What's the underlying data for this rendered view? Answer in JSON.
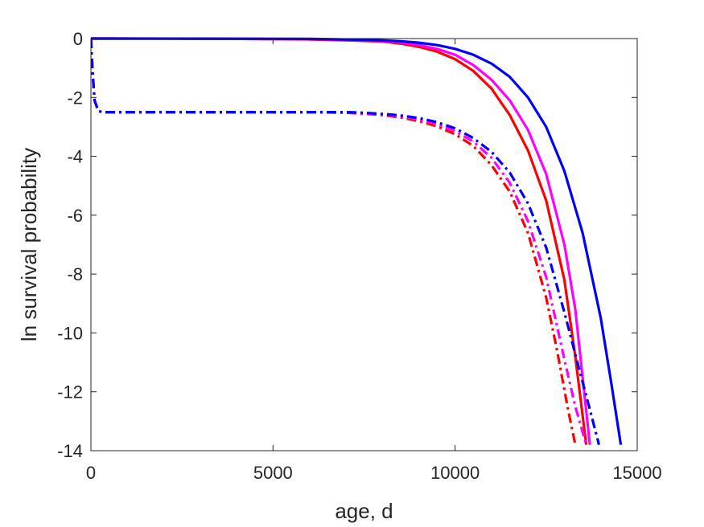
{
  "chart_data": {
    "type": "line",
    "title": "",
    "xlabel": "age, d",
    "ylabel": "ln survival probability",
    "xlim": [
      0,
      15000
    ],
    "ylim": [
      -14,
      0
    ],
    "xticks": [
      0,
      5000,
      10000,
      15000
    ],
    "xtick_labels": [
      "0",
      "5000",
      "10000",
      "15000"
    ],
    "yticks": [
      0,
      -2,
      -4,
      -6,
      -8,
      -10,
      -12,
      -14
    ],
    "ytick_labels": [
      "0",
      "-2",
      "-4",
      "-6",
      "-8",
      "-10",
      "-12",
      "-14"
    ],
    "grid": false,
    "legend": "none",
    "series": [
      {
        "color": "#ff0000",
        "style": "solid",
        "x": [
          0,
          2000,
          4000,
          6000,
          7000,
          8000,
          8500,
          9000,
          9500,
          10000,
          10500,
          11000,
          11500,
          12000,
          12500,
          13000,
          13300,
          13600
        ],
        "y": [
          0,
          -0.002,
          -0.01,
          -0.03,
          -0.06,
          -0.1,
          -0.17,
          -0.28,
          -0.44,
          -0.7,
          -1.1,
          -1.7,
          -2.6,
          -3.8,
          -5.5,
          -8.2,
          -10.8,
          -13.8
        ]
      },
      {
        "color": "#ff00ff",
        "style": "solid",
        "x": [
          0,
          2000,
          4000,
          6000,
          7000,
          8000,
          8500,
          9000,
          9500,
          10000,
          10500,
          11000,
          11500,
          12000,
          12500,
          13000,
          13300,
          13700
        ],
        "y": [
          0,
          -0.002,
          -0.01,
          -0.02,
          -0.05,
          -0.08,
          -0.13,
          -0.22,
          -0.35,
          -0.55,
          -0.9,
          -1.4,
          -2.1,
          -3.1,
          -4.6,
          -7.0,
          -9.2,
          -13.8
        ]
      },
      {
        "color": "#0000ff",
        "style": "solid",
        "x": [
          0,
          2000,
          4000,
          6000,
          7000,
          8000,
          8500,
          9000,
          9500,
          10000,
          10500,
          11000,
          11500,
          12000,
          12500,
          13000,
          13500,
          14000,
          14300,
          14550
        ],
        "y": [
          0,
          -0.001,
          -0.005,
          -0.01,
          -0.03,
          -0.06,
          -0.09,
          -0.14,
          -0.22,
          -0.35,
          -0.55,
          -0.85,
          -1.3,
          -2.0,
          -3.0,
          -4.5,
          -6.6,
          -9.5,
          -11.8,
          -13.8
        ]
      },
      {
        "color": "#ff0000",
        "style": "dashdot",
        "x": [
          0,
          50,
          100,
          200,
          300,
          1000,
          3000,
          5000,
          6000,
          7000,
          7500,
          8000,
          8500,
          9000,
          9500,
          10000,
          10500,
          11000,
          11500,
          12000,
          12500,
          12800,
          13100,
          13300
        ],
        "y": [
          0,
          -1.2,
          -2.1,
          -2.45,
          -2.5,
          -2.5,
          -2.5,
          -2.5,
          -2.5,
          -2.52,
          -2.55,
          -2.6,
          -2.68,
          -2.8,
          -2.98,
          -3.25,
          -3.65,
          -4.3,
          -5.2,
          -6.6,
          -8.8,
          -10.6,
          -12.6,
          -13.8
        ]
      },
      {
        "color": "#ff00ff",
        "style": "dashdot",
        "x": [
          0,
          50,
          100,
          200,
          300,
          1000,
          3000,
          5000,
          6000,
          7000,
          7500,
          8000,
          8500,
          9000,
          9500,
          10000,
          10500,
          11000,
          11500,
          12000,
          12500,
          13000,
          13300,
          13600
        ],
        "y": [
          0,
          -1.2,
          -2.1,
          -2.45,
          -2.5,
          -2.5,
          -2.5,
          -2.5,
          -2.5,
          -2.51,
          -2.54,
          -2.58,
          -2.64,
          -2.74,
          -2.9,
          -3.15,
          -3.5,
          -4.05,
          -4.9,
          -6.2,
          -8.1,
          -10.9,
          -12.5,
          -13.8
        ]
      },
      {
        "color": "#0000ff",
        "style": "dashdot",
        "x": [
          0,
          50,
          100,
          200,
          300,
          1000,
          3000,
          5000,
          6000,
          7000,
          7500,
          8000,
          8500,
          9000,
          9500,
          10000,
          10500,
          11000,
          11500,
          12000,
          12500,
          13000,
          13400,
          13700,
          13950
        ],
        "y": [
          0,
          -1.2,
          -2.1,
          -2.45,
          -2.5,
          -2.5,
          -2.5,
          -2.5,
          -2.5,
          -2.5,
          -2.52,
          -2.56,
          -2.61,
          -2.7,
          -2.84,
          -3.05,
          -3.38,
          -3.85,
          -4.55,
          -5.6,
          -7.1,
          -9.3,
          -11.2,
          -12.6,
          -13.8
        ]
      }
    ]
  }
}
